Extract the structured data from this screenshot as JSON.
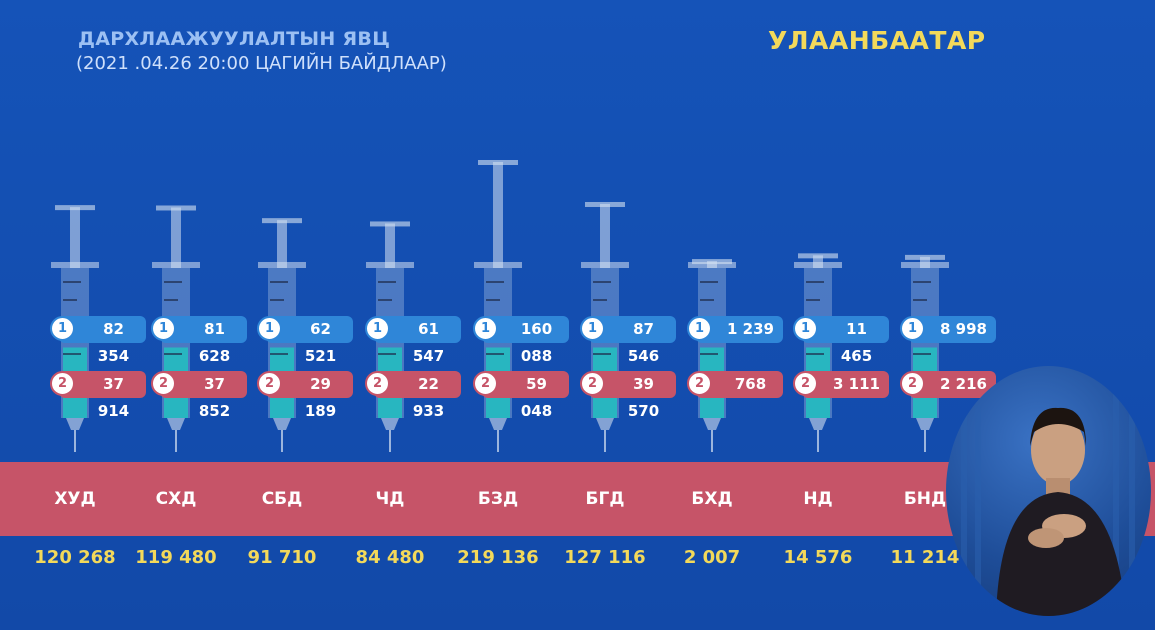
{
  "header": {
    "title": "ДАРХЛААЖУУЛАЛТЫН ЯВЦ",
    "subtitle": "(2021 .04.26    20:00 ЦАГИЙН БАЙДЛААР)",
    "city": "УЛААНБААТАР"
  },
  "colors": {
    "background": "#1553b8",
    "dose1": "#2f86d8",
    "dose2": "#c65468",
    "band": "#c65468",
    "total": "#f3d95a",
    "fill": "#22c1bf"
  },
  "chart_data": {
    "type": "bar",
    "categories": [
      "ХУД",
      "СХД",
      "СБД",
      "ЧД",
      "БЗД",
      "БГД",
      "БХД",
      "НД",
      "БНД"
    ],
    "series": [
      {
        "values": [
          82354,
          81628,
          62521,
          61547,
          160088,
          87546,
          1239,
          11465,
          8998
        ]
      },
      {
        "values": [
          37914,
          37852,
          29189,
          22933,
          59048,
          39570,
          768,
          3111,
          2216
        ]
      }
    ],
    "totals": [
      120268,
      119480,
      91710,
      84480,
      219136,
      127116,
      2007,
      14576,
      11214
    ]
  },
  "labels": {
    "dose1": [
      "82 354",
      "81 628",
      "62 521",
      "61 547",
      "160 088",
      "87 546",
      "1 239",
      "11 465",
      "8 998"
    ],
    "dose2": [
      "37 914",
      "37 852",
      "29 189",
      "22 933",
      "59 048",
      "39 570",
      "768",
      "3 111",
      "2 216"
    ],
    "totals": [
      "120 268",
      "119 480",
      "91 710",
      "84 480",
      "219 136",
      "127 116",
      "2 007",
      "14 576",
      "11 214"
    ],
    "dose1_marker": "1",
    "dose2_marker": "2"
  }
}
